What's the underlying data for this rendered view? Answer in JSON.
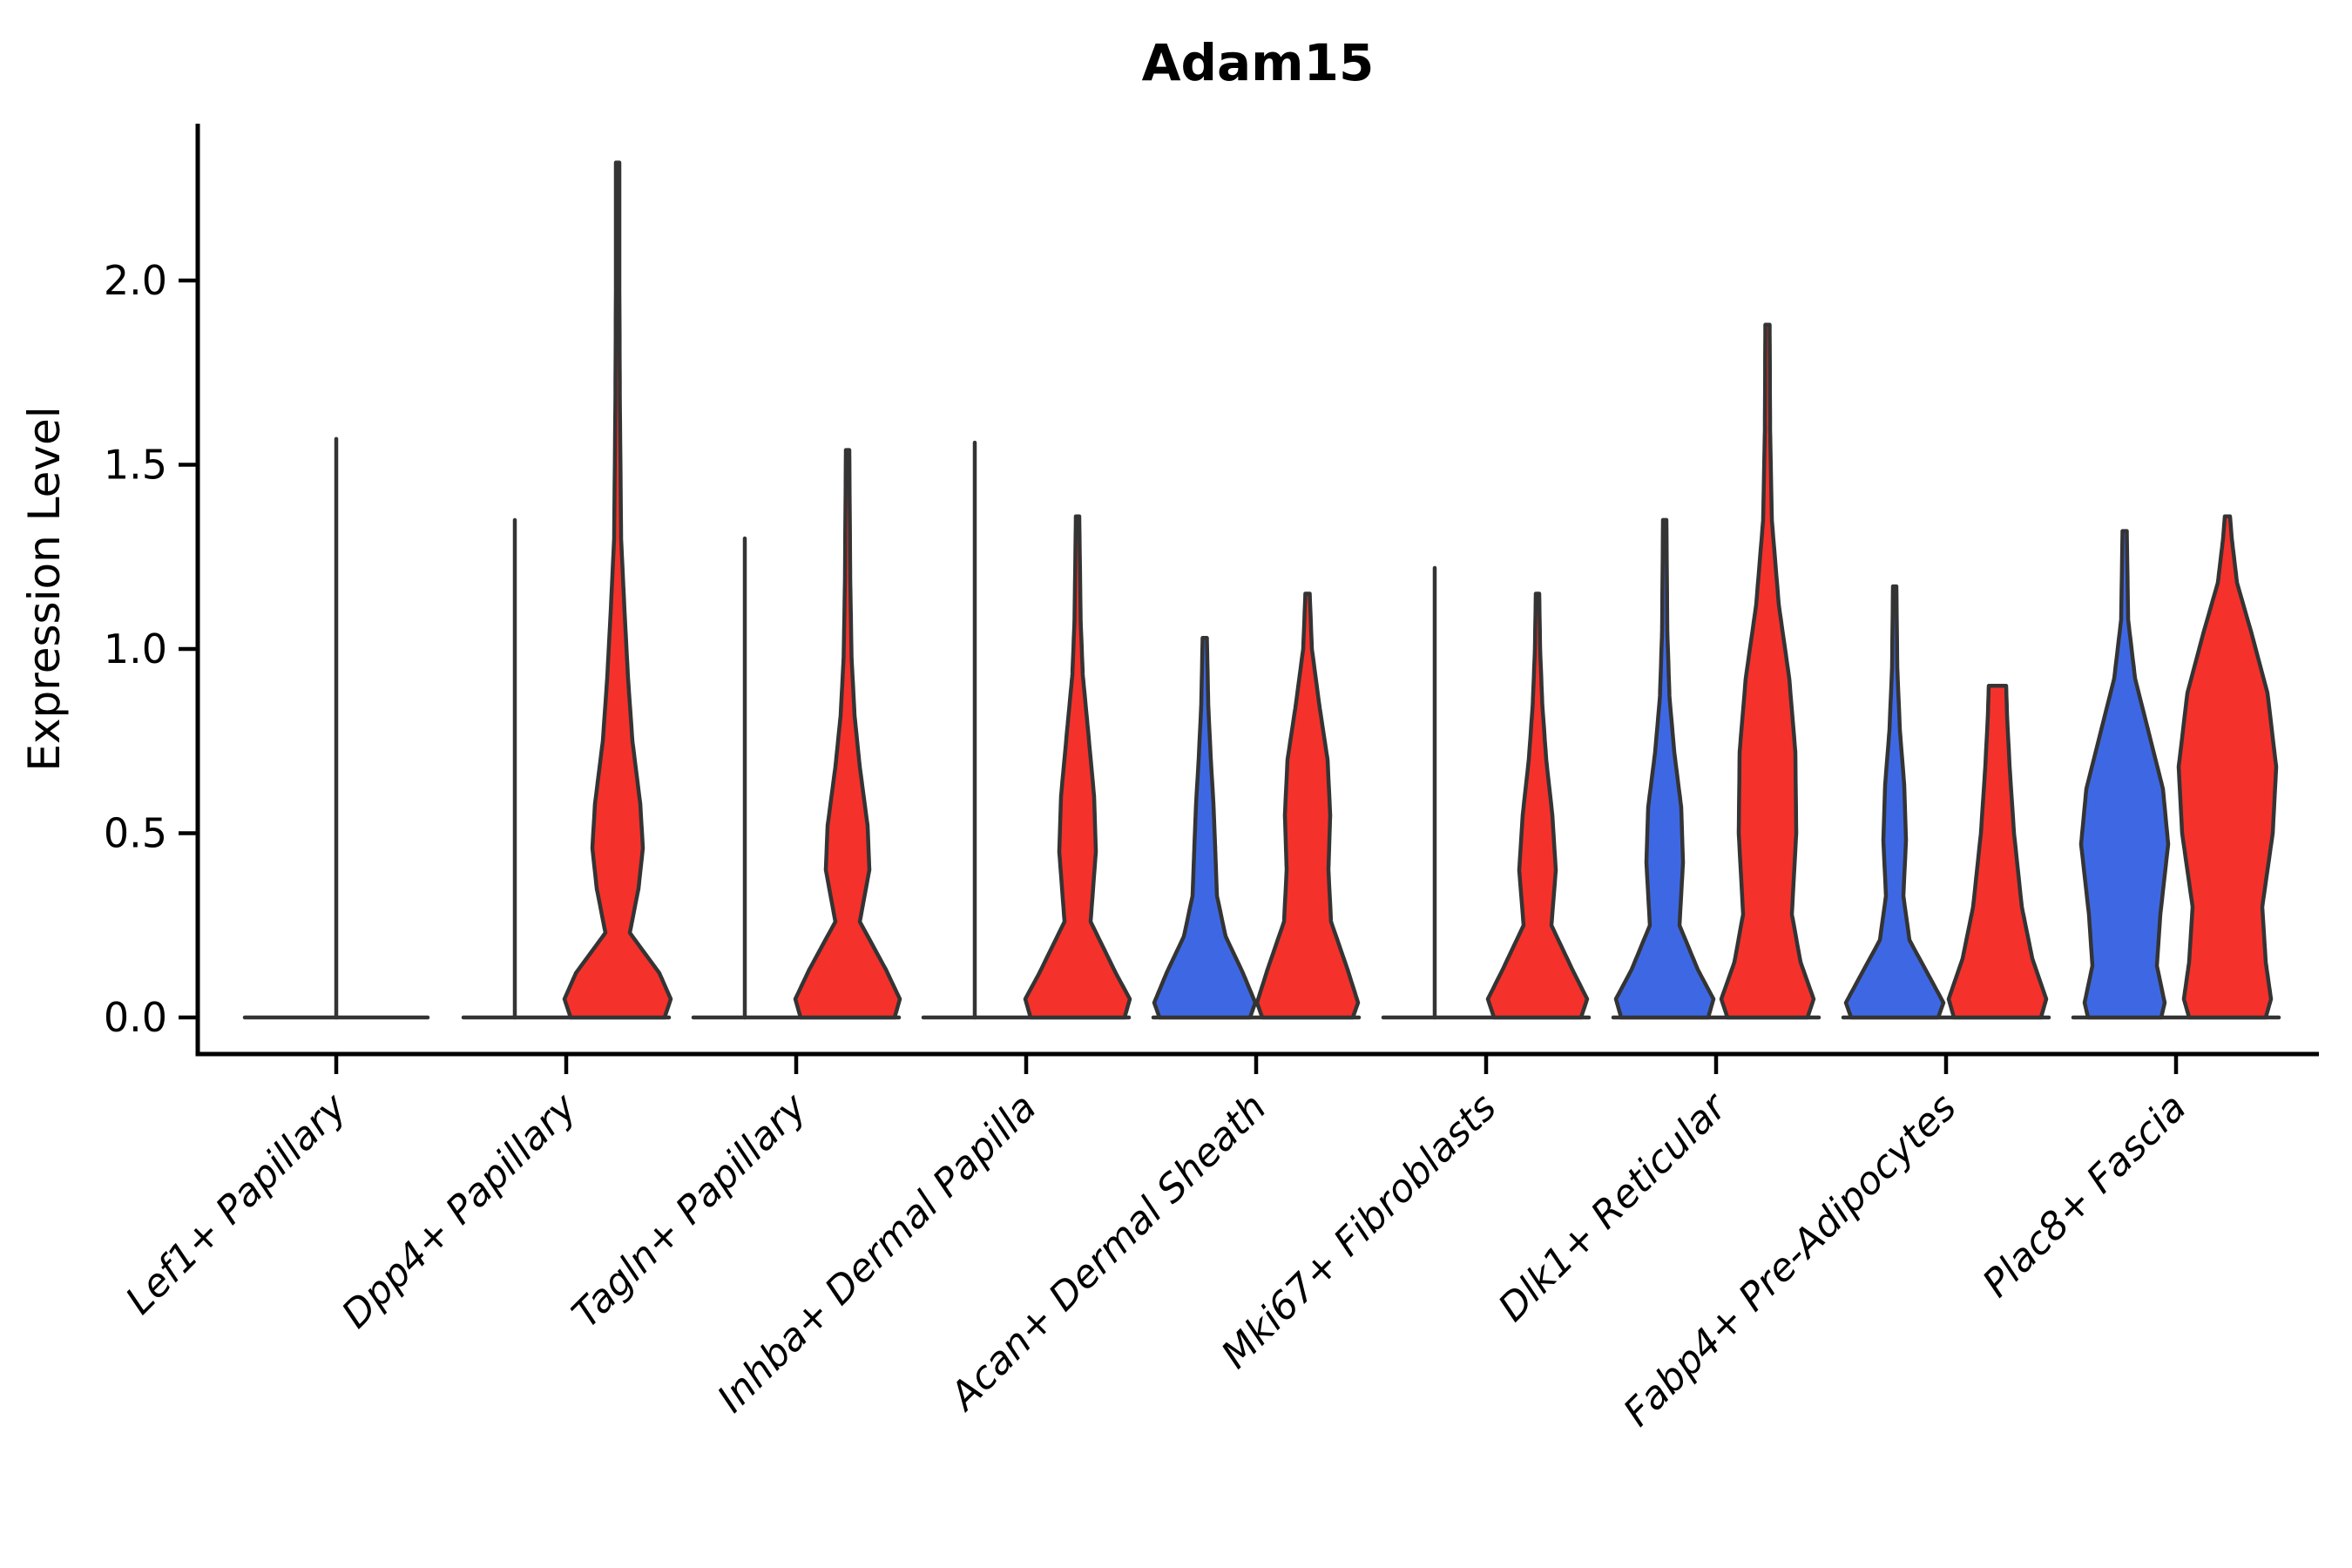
{
  "title": "Adam15",
  "chart_data": {
    "type": "violin",
    "title": "Adam15",
    "ylabel": "Expression Level",
    "xlabel": "",
    "grid": false,
    "legend": "none",
    "ylim": [
      -0.1,
      2.43
    ],
    "yticks": [
      0.0,
      0.5,
      1.0,
      1.5,
      2.0
    ],
    "ytick_labels": [
      "0.0",
      "0.5",
      "1.0",
      "1.5",
      "2.0"
    ],
    "categories": [
      "Lef1+ Papillary",
      "Dpp4+ Papillary",
      "Tagln+ Papillary",
      "Inhba+ Dermal Papilla",
      "Acan+ Dermal Sheath",
      "Mki67+ Fibroblasts",
      "Dlk1+ Reticular",
      "Fabp4+ Pre-Adipocytes",
      "Plac8+ Fascia"
    ],
    "series_colors": {
      "blue": "#3E68E3",
      "red": "#F5312B"
    },
    "outline_color": "#343434",
    "axis_color": "#000000",
    "violins": [
      {
        "category": "Lef1+ Papillary",
        "blue": {
          "shape": "collapsed",
          "max": 1.57,
          "center": "middle",
          "span": 105
        },
        "red": null
      },
      {
        "category": "Dpp4+ Papillary",
        "blue": {
          "shape": "collapsed",
          "max": 1.35
        },
        "red": {
          "shape": "kde",
          "max": 2.32,
          "profile": [
            [
              0,
              54
            ],
            [
              0.05,
              61
            ],
            [
              0.12,
              48
            ],
            [
              0.23,
              14
            ],
            [
              0.35,
              24
            ],
            [
              0.46,
              29
            ],
            [
              0.58,
              26
            ],
            [
              0.75,
              17
            ],
            [
              0.92,
              12
            ],
            [
              1.1,
              8
            ],
            [
              1.3,
              4
            ],
            [
              1.7,
              2.5
            ],
            [
              2.0,
              2
            ],
            [
              2.32,
              2
            ]
          ]
        }
      },
      {
        "category": "Tagln+ Papillary",
        "blue": {
          "shape": "collapsed",
          "max": 1.3
        },
        "red": {
          "shape": "kde",
          "max": 1.54,
          "profile": [
            [
              0,
              54
            ],
            [
              0.05,
              60
            ],
            [
              0.13,
              44
            ],
            [
              0.26,
              14
            ],
            [
              0.4,
              25
            ],
            [
              0.52,
              23
            ],
            [
              0.68,
              14
            ],
            [
              0.82,
              8
            ],
            [
              0.98,
              4.5
            ],
            [
              1.2,
              3
            ],
            [
              1.54,
              2
            ]
          ]
        }
      },
      {
        "category": "Inhba+ Dermal Papilla",
        "blue": {
          "shape": "collapsed",
          "max": 1.56
        },
        "red": {
          "shape": "kde",
          "max": 1.36,
          "profile": [
            [
              0,
              54
            ],
            [
              0.05,
              60
            ],
            [
              0.12,
              44
            ],
            [
              0.26,
              15
            ],
            [
              0.45,
              21
            ],
            [
              0.6,
              19
            ],
            [
              0.78,
              12
            ],
            [
              0.93,
              6
            ],
            [
              1.08,
              3.5
            ],
            [
              1.36,
              2
            ]
          ]
        }
      },
      {
        "category": "Acan+ Dermal Sheath",
        "blue": {
          "shape": "kde",
          "max": 1.03,
          "profile": [
            [
              0,
              52
            ],
            [
              0.04,
              58
            ],
            [
              0.12,
              44
            ],
            [
              0.22,
              24
            ],
            [
              0.33,
              14
            ],
            [
              0.46,
              12
            ],
            [
              0.58,
              10
            ],
            [
              0.7,
              7
            ],
            [
              0.85,
              4
            ],
            [
              1.03,
              2.5
            ]
          ]
        },
        "red": {
          "shape": "kde",
          "max": 1.15,
          "profile": [
            [
              0,
              52
            ],
            [
              0.04,
              58
            ],
            [
              0.13,
              46
            ],
            [
              0.26,
              27
            ],
            [
              0.4,
              24
            ],
            [
              0.55,
              26
            ],
            [
              0.7,
              23
            ],
            [
              0.84,
              14
            ],
            [
              1.0,
              5
            ],
            [
              1.15,
              2.5
            ]
          ]
        }
      },
      {
        "category": "Mki67+ Fibroblasts",
        "blue": {
          "shape": "collapsed",
          "max": 1.22
        },
        "red": {
          "shape": "kde",
          "max": 1.15,
          "profile": [
            [
              0,
              50
            ],
            [
              0.05,
              57
            ],
            [
              0.13,
              40
            ],
            [
              0.25,
              16
            ],
            [
              0.4,
              21
            ],
            [
              0.55,
              17
            ],
            [
              0.7,
              10
            ],
            [
              0.85,
              5.5
            ],
            [
              1.0,
              3
            ],
            [
              1.15,
              2
            ]
          ]
        }
      },
      {
        "category": "Dlk1+ Reticular",
        "blue": {
          "shape": "kde",
          "max": 1.35,
          "profile": [
            [
              0,
              50
            ],
            [
              0.05,
              56
            ],
            [
              0.13,
              38
            ],
            [
              0.25,
              17
            ],
            [
              0.42,
              21
            ],
            [
              0.57,
              19
            ],
            [
              0.72,
              11
            ],
            [
              0.87,
              5.5
            ],
            [
              1.05,
              3
            ],
            [
              1.35,
              2
            ]
          ]
        },
        "red": {
          "shape": "kde",
          "max": 1.88,
          "profile": [
            [
              0,
              46
            ],
            [
              0.05,
              53
            ],
            [
              0.15,
              38
            ],
            [
              0.28,
              28
            ],
            [
              0.5,
              33
            ],
            [
              0.72,
              32
            ],
            [
              0.92,
              25
            ],
            [
              1.12,
              13
            ],
            [
              1.35,
              5
            ],
            [
              1.6,
              3
            ],
            [
              1.88,
              2.5
            ]
          ]
        }
      },
      {
        "category": "Fabp4+ Pre-Adipocytes",
        "blue": {
          "shape": "kde",
          "max": 1.17,
          "profile": [
            [
              0,
              50
            ],
            [
              0.04,
              56
            ],
            [
              0.11,
              40
            ],
            [
              0.21,
              17
            ],
            [
              0.33,
              10
            ],
            [
              0.48,
              13
            ],
            [
              0.63,
              11
            ],
            [
              0.78,
              6
            ],
            [
              0.95,
              3
            ],
            [
              1.17,
              2
            ]
          ]
        },
        "red": {
          "shape": "kde",
          "max": 0.9,
          "flat_top": true,
          "profile": [
            [
              0,
              50
            ],
            [
              0.05,
              56
            ],
            [
              0.16,
              40
            ],
            [
              0.3,
              28
            ],
            [
              0.5,
              19
            ],
            [
              0.68,
              14
            ],
            [
              0.82,
              11
            ],
            [
              0.9,
              10
            ]
          ]
        }
      },
      {
        "category": "Plac8+ Fascia",
        "blue": {
          "shape": "kde",
          "max": 1.32,
          "profile": [
            [
              0,
              42
            ],
            [
              0.04,
              46
            ],
            [
              0.14,
              37
            ],
            [
              0.28,
              41
            ],
            [
              0.47,
              50
            ],
            [
              0.62,
              44
            ],
            [
              0.77,
              28
            ],
            [
              0.92,
              12
            ],
            [
              1.08,
              4
            ],
            [
              1.32,
              2.5
            ]
          ]
        },
        "red": {
          "shape": "kde",
          "max": 1.36,
          "profile": [
            [
              0,
              44
            ],
            [
              0.05,
              50
            ],
            [
              0.15,
              44
            ],
            [
              0.3,
              40
            ],
            [
              0.5,
              52
            ],
            [
              0.68,
              56
            ],
            [
              0.88,
              46
            ],
            [
              1.04,
              28
            ],
            [
              1.18,
              11
            ],
            [
              1.3,
              5
            ],
            [
              1.36,
              3
            ]
          ]
        }
      }
    ]
  }
}
